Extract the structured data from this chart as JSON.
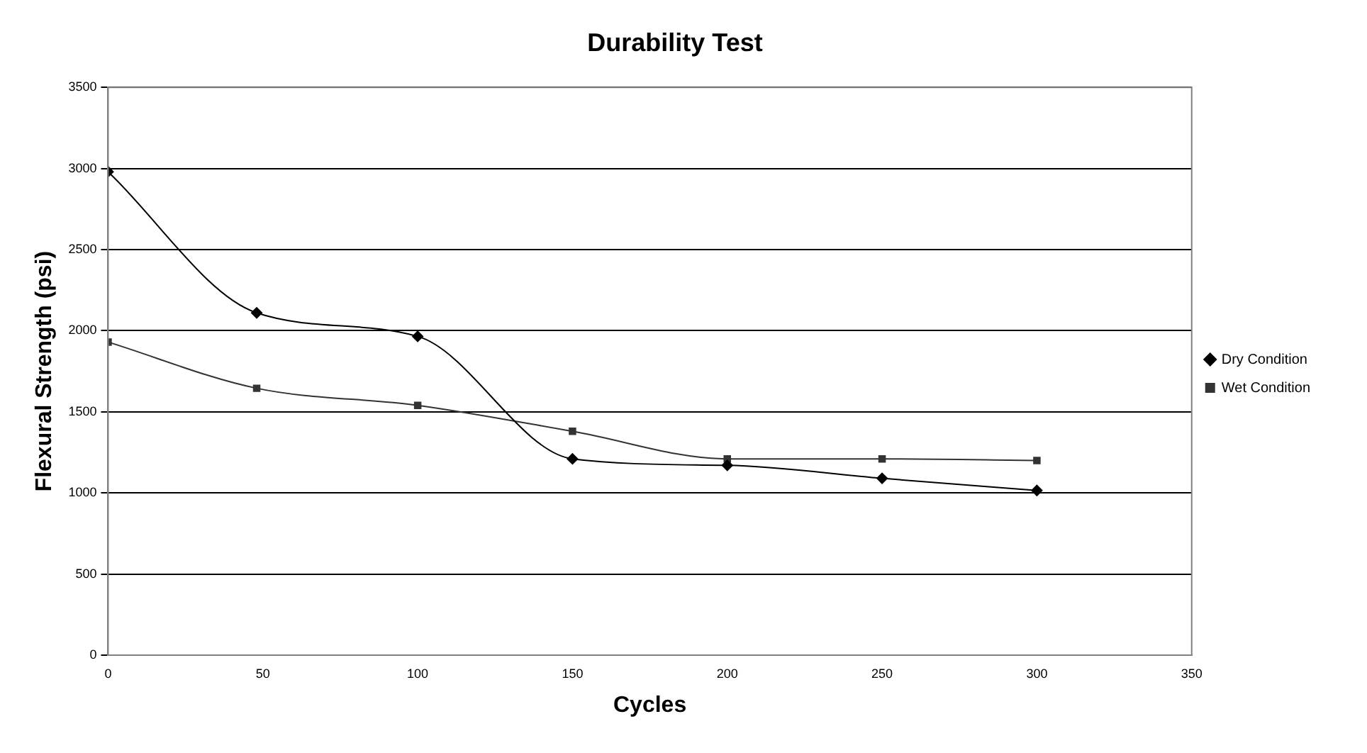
{
  "chart_data": {
    "type": "line",
    "title": "Durability Test",
    "xlabel": "Cycles",
    "ylabel": "Flexural Strength (psi)",
    "x": [
      0,
      48,
      100,
      150,
      200,
      250,
      300
    ],
    "series": [
      {
        "name": "Dry Condition",
        "color": "#000000",
        "marker": "diamond",
        "values": [
          2980,
          2110,
          1965,
          1210,
          1170,
          1090,
          1015
        ]
      },
      {
        "name": "Wet Condition",
        "color": "#333333",
        "marker": "square",
        "values": [
          1930,
          1645,
          1540,
          1380,
          1210,
          1210,
          1200
        ]
      }
    ],
    "xlim": [
      0,
      350
    ],
    "xticks": [
      0,
      50,
      100,
      150,
      200,
      250,
      300,
      350
    ],
    "ylim": [
      0,
      3500
    ],
    "yticks": [
      0,
      500,
      1000,
      1500,
      2000,
      2500,
      3000,
      3500
    ],
    "grid": "y",
    "legend": "right",
    "line_style": "solid"
  }
}
